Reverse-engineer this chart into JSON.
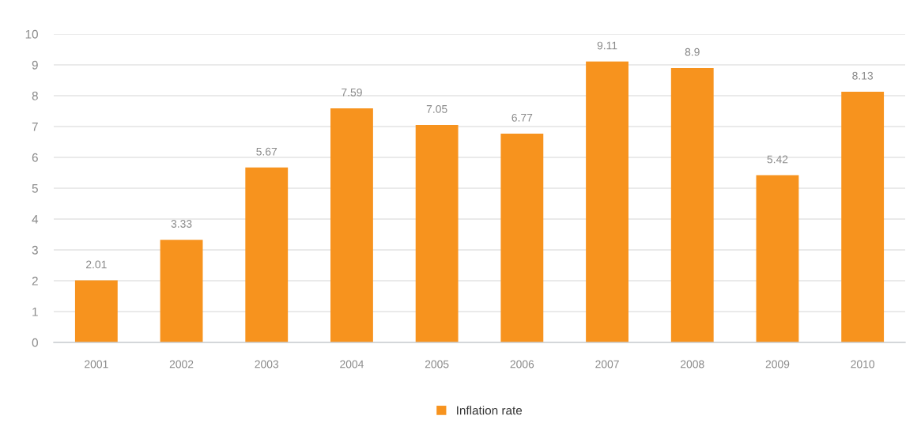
{
  "chart_data": {
    "type": "bar",
    "categories": [
      "2001",
      "2002",
      "2003",
      "2004",
      "2005",
      "2006",
      "2007",
      "2008",
      "2009",
      "2010"
    ],
    "series": [
      {
        "name": "Inflation rate",
        "color": "#f7931e",
        "values": [
          2.01,
          3.33,
          5.67,
          7.59,
          7.05,
          6.77,
          9.11,
          8.9,
          5.42,
          8.13
        ]
      }
    ],
    "ylim": [
      0,
      10
    ],
    "yticks": [
      0,
      1,
      2,
      3,
      4,
      5,
      6,
      7,
      8,
      9,
      10
    ],
    "grid": "y",
    "legend": "bottom",
    "data_labels": true
  }
}
